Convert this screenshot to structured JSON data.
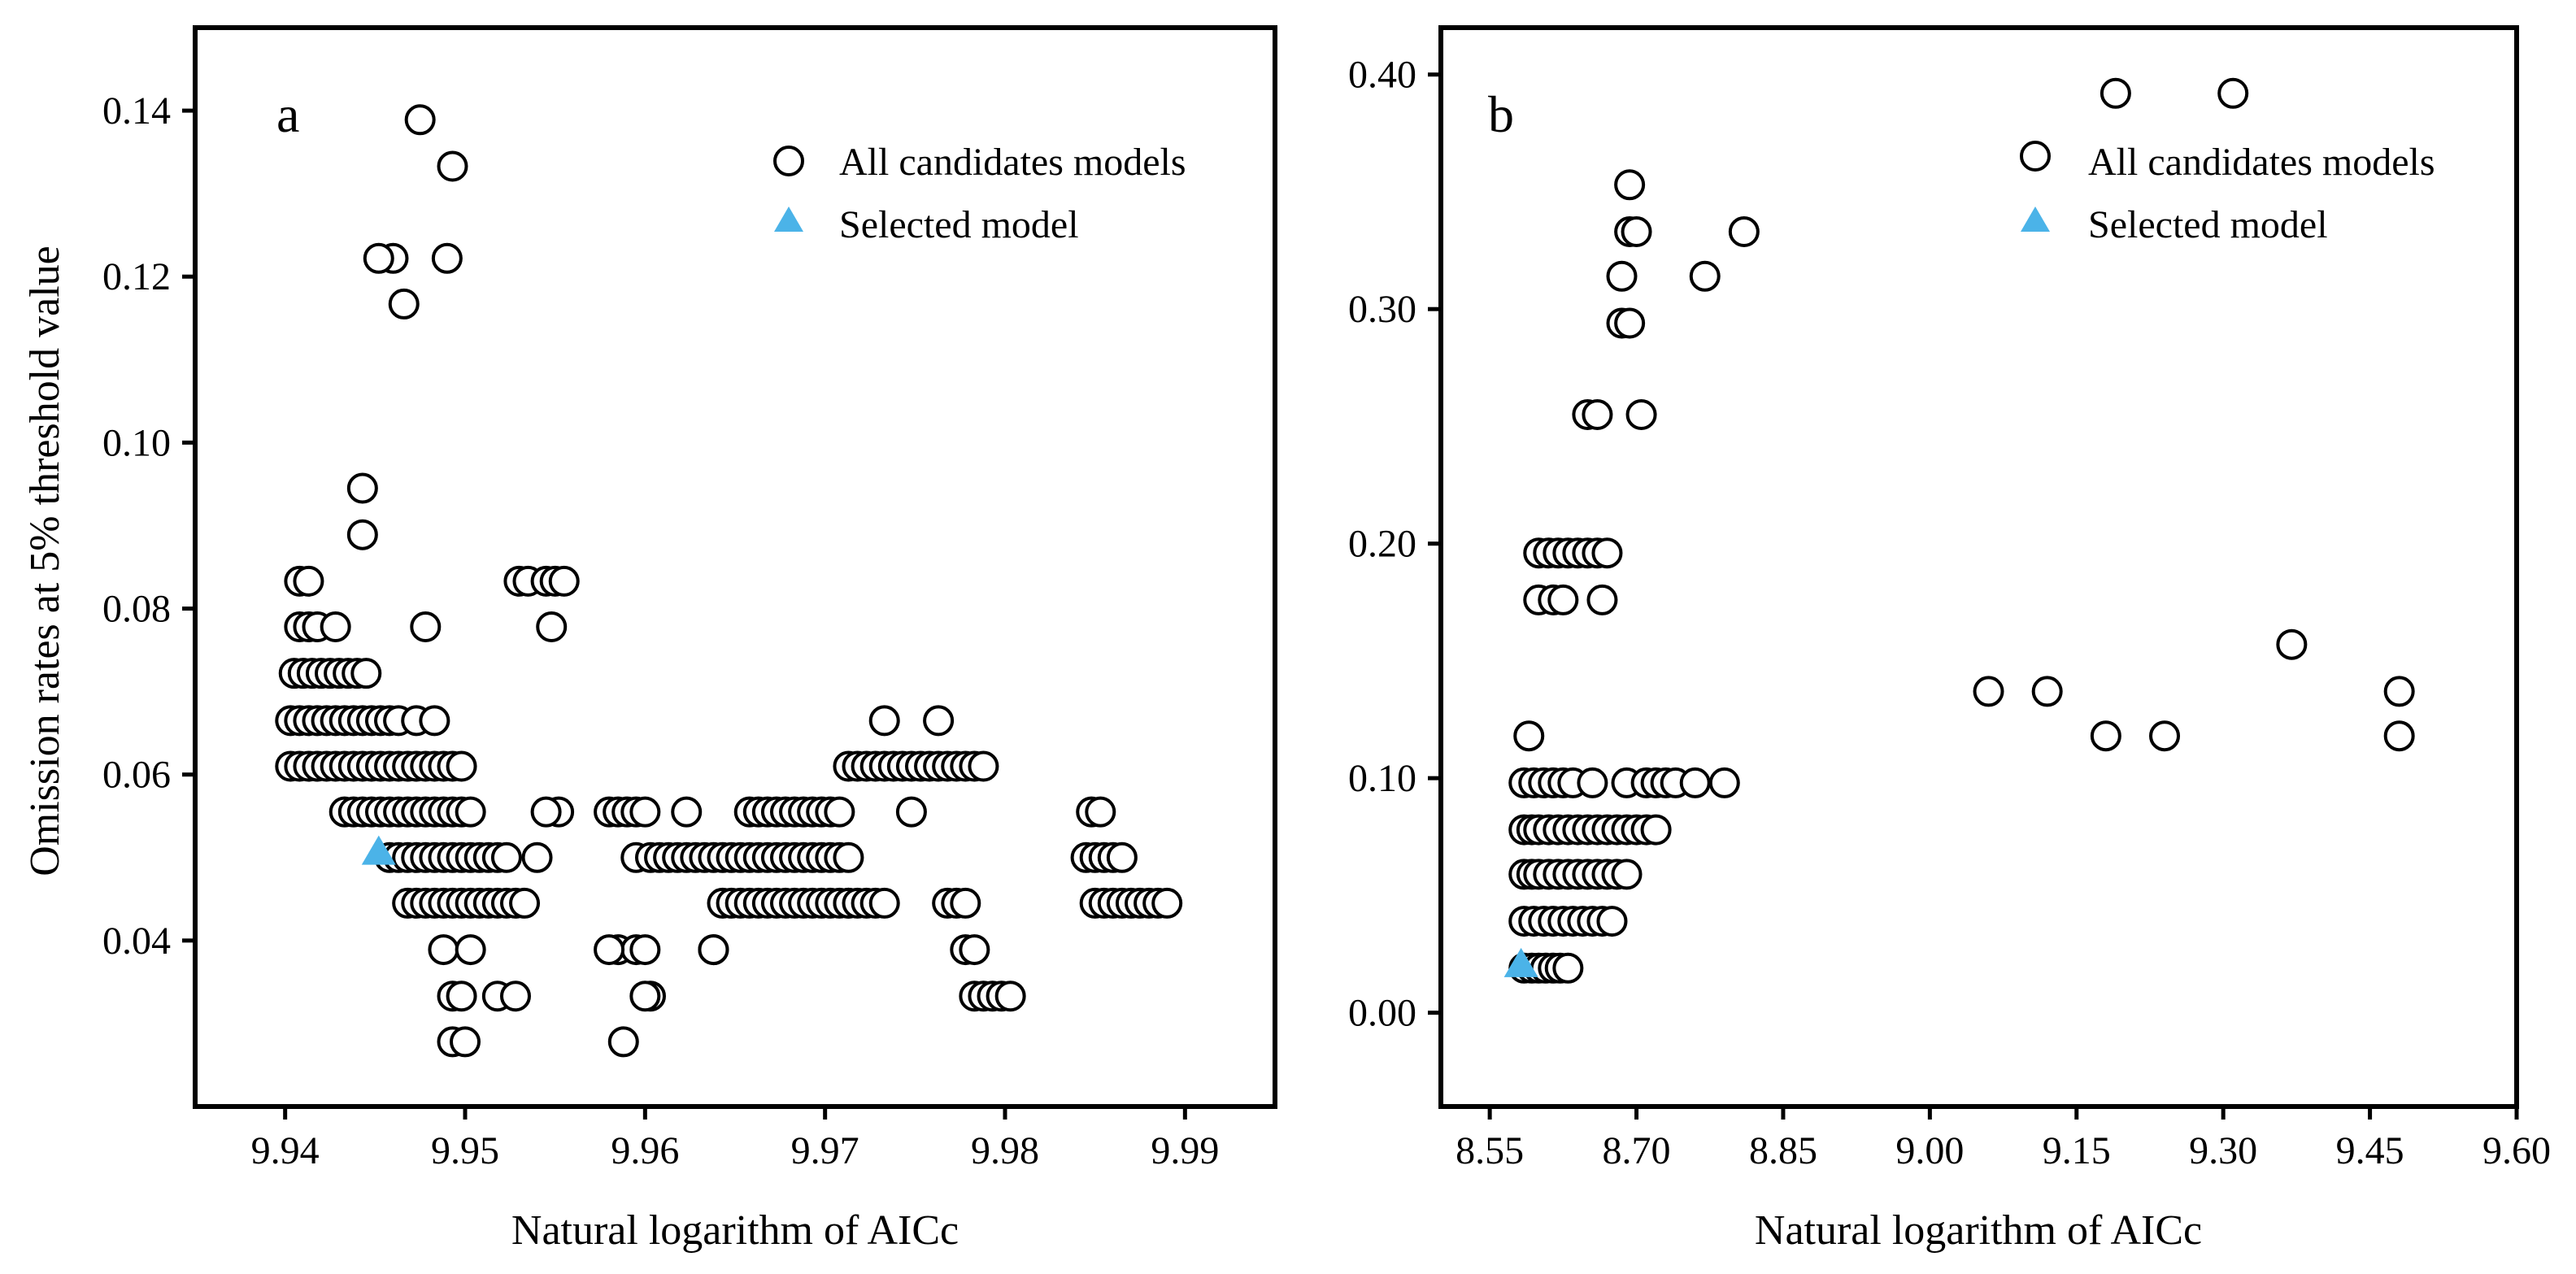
{
  "figure": {
    "ylabel": "Omission rates at 5% threshold value"
  },
  "chart_data": [
    {
      "type": "scatter",
      "panel_label": "a",
      "xlabel": "Natural logarithm of AICc",
      "ylabel": "Omission rates at 5% threshold value",
      "xlim": [
        9.935,
        9.995
      ],
      "ylim": [
        0.02,
        0.15
      ],
      "xticks": [
        "9.94",
        "9.95",
        "9.96",
        "9.97",
        "9.98",
        "9.99"
      ],
      "yticks": [
        "0.04",
        "0.06",
        "0.08",
        "0.10",
        "0.12",
        "0.14"
      ],
      "legend": {
        "position": "top-right",
        "entries": [
          "All candidates models",
          "Selected model"
        ]
      },
      "series": [
        {
          "name": "All candidates models",
          "marker": "open-circle",
          "x": [
            9.9403,
            9.9408,
            9.9413,
            9.9418,
            9.9423,
            9.9428,
            9.9433,
            9.9438,
            9.9443,
            9.9448,
            9.9453,
            9.9458,
            9.9463,
            9.9468,
            9.9473,
            9.9478,
            9.9483,
            9.9488,
            9.9493,
            9.9498,
            9.9403,
            9.9408,
            9.9413,
            9.9418,
            9.9423,
            9.9428,
            9.9433,
            9.9438,
            9.9443,
            9.9448,
            9.9453,
            9.9458,
            9.9463,
            9.9473,
            9.9483,
            9.9405,
            9.941,
            9.9415,
            9.942,
            9.9425,
            9.943,
            9.9435,
            9.944,
            9.9445,
            9.9408,
            9.9413,
            9.9418,
            9.9428,
            9.9408,
            9.9413,
            9.9433,
            9.9438,
            9.9443,
            9.9448,
            9.9453,
            9.9458,
            9.9463,
            9.9468,
            9.9473,
            9.9478,
            9.9483,
            9.9488,
            9.9493,
            9.9498,
            9.9503,
            9.9458,
            9.9463,
            9.9468,
            9.9473,
            9.9478,
            9.9483,
            9.9488,
            9.9493,
            9.9498,
            9.9503,
            9.9508,
            9.9513,
            9.9518,
            9.9523,
            9.9468,
            9.9473,
            9.9478,
            9.9483,
            9.9488,
            9.9493,
            9.9498,
            9.9503,
            9.9508,
            9.9513,
            9.9518,
            9.9523,
            9.9528,
            9.9533,
            9.9488,
            9.9503,
            9.9493,
            9.9498,
            9.9518,
            9.9528,
            9.9493,
            9.95,
            9.9443,
            9.9443,
            9.946,
            9.9475,
            9.949,
            9.9493,
            9.9478,
            9.9452,
            9.9466,
            9.953,
            9.9535,
            9.9545,
            9.955,
            9.9555,
            9.9548,
            9.9552,
            9.9545,
            9.954,
            9.958,
            9.9585,
            9.959,
            9.9595,
            9.96,
            9.9585,
            9.9595,
            9.96,
            9.9603,
            9.958,
            9.9588,
            9.96,
            9.9595,
            9.9603,
            9.9608,
            9.9613,
            9.9618,
            9.9623,
            9.9628,
            9.9633,
            9.9638,
            9.9643,
            9.9648,
            9.9653,
            9.9658,
            9.9663,
            9.9668,
            9.9673,
            9.9678,
            9.9683,
            9.9688,
            9.9693,
            9.9698,
            9.9703,
            9.9708,
            9.9713,
            9.9623,
            9.9638,
            9.9643,
            9.9648,
            9.9653,
            9.9658,
            9.9663,
            9.9668,
            9.9673,
            9.9678,
            9.9683,
            9.9688,
            9.9693,
            9.9698,
            9.9703,
            9.9708,
            9.9713,
            9.9658,
            9.9663,
            9.9668,
            9.9673,
            9.9678,
            9.9683,
            9.9688,
            9.9693,
            9.9698,
            9.9703,
            9.9708,
            9.9713,
            9.9718,
            9.9723,
            9.9728,
            9.9733,
            9.9738,
            9.9743,
            9.9748,
            9.9753,
            9.9758,
            9.9763,
            9.9768,
            9.9773,
            9.9778,
            9.9783,
            9.9788,
            9.9733,
            9.9748,
            9.9763,
            9.9713,
            9.9718,
            9.9723,
            9.9728,
            9.9733,
            9.9638,
            9.9768,
            9.9773,
            9.9778,
            9.9778,
            9.9783,
            9.9783,
            9.9788,
            9.9793,
            9.9798,
            9.9803,
            9.9848,
            9.9853,
            9.9845,
            9.985,
            9.9855,
            9.986,
            9.9865,
            9.985,
            9.9855,
            9.986,
            9.9865,
            9.987,
            9.9875,
            9.988,
            9.9885,
            9.989
          ],
          "y": [
            0.061,
            0.061,
            0.061,
            0.061,
            0.061,
            0.061,
            0.061,
            0.061,
            0.061,
            0.061,
            0.061,
            0.061,
            0.061,
            0.061,
            0.061,
            0.061,
            0.061,
            0.061,
            0.061,
            0.061,
            0.0665,
            0.0665,
            0.0665,
            0.0665,
            0.0665,
            0.0665,
            0.0665,
            0.0665,
            0.0665,
            0.0665,
            0.0665,
            0.0665,
            0.0665,
            0.0665,
            0.0665,
            0.0722,
            0.0722,
            0.0722,
            0.0722,
            0.0722,
            0.0722,
            0.0722,
            0.0722,
            0.0722,
            0.0778,
            0.0778,
            0.0778,
            0.0778,
            0.0833,
            0.0833,
            0.0555,
            0.0555,
            0.0555,
            0.0555,
            0.0555,
            0.0555,
            0.0555,
            0.0555,
            0.0555,
            0.0555,
            0.0555,
            0.0555,
            0.0555,
            0.0555,
            0.0555,
            0.05,
            0.05,
            0.05,
            0.05,
            0.05,
            0.05,
            0.05,
            0.05,
            0.05,
            0.05,
            0.05,
            0.05,
            0.05,
            0.05,
            0.0445,
            0.0445,
            0.0445,
            0.0445,
            0.0445,
            0.0445,
            0.0445,
            0.0445,
            0.0445,
            0.0445,
            0.0445,
            0.0445,
            0.0445,
            0.0445,
            0.0389,
            0.0389,
            0.0333,
            0.0333,
            0.0333,
            0.0333,
            0.0278,
            0.0278,
            0.0945,
            0.0889,
            0.1222,
            0.1389,
            0.1222,
            0.1333,
            0.0778,
            0.1222,
            0.1167,
            0.0833,
            0.0833,
            0.0833,
            0.0833,
            0.0833,
            0.0778,
            0.0555,
            0.0555,
            0.05,
            0.0555,
            0.0555,
            0.0555,
            0.0555,
            0.0555,
            0.0389,
            0.0389,
            0.0389,
            0.0333,
            0.0389,
            0.0278,
            0.0333,
            0.05,
            0.05,
            0.05,
            0.05,
            0.05,
            0.05,
            0.05,
            0.05,
            0.05,
            0.05,
            0.05,
            0.05,
            0.05,
            0.05,
            0.05,
            0.05,
            0.05,
            0.05,
            0.05,
            0.05,
            0.05,
            0.05,
            0.05,
            0.05,
            0.0555,
            0.0389,
            0.0445,
            0.0445,
            0.0445,
            0.0445,
            0.0445,
            0.0445,
            0.0445,
            0.0445,
            0.0445,
            0.0445,
            0.0445,
            0.0445,
            0.0445,
            0.0445,
            0.0445,
            0.0555,
            0.0555,
            0.0555,
            0.0555,
            0.0555,
            0.0555,
            0.0555,
            0.0555,
            0.0555,
            0.0555,
            0.0555,
            0.061,
            0.061,
            0.061,
            0.061,
            0.061,
            0.061,
            0.061,
            0.061,
            0.061,
            0.061,
            0.061,
            0.061,
            0.061,
            0.061,
            0.061,
            0.061,
            0.0665,
            0.0555,
            0.0665,
            0.0445,
            0.0445,
            0.0445,
            0.0445,
            0.0445,
            0.0389,
            0.0445,
            0.0445,
            0.0445,
            0.0389,
            0.0389,
            0.0333,
            0.0333,
            0.0333,
            0.0333,
            0.0333,
            0.0555,
            0.0555,
            0.05,
            0.05,
            0.05,
            0.05,
            0.05,
            0.0445,
            0.0445,
            0.0445,
            0.0445,
            0.0445,
            0.0445,
            0.0445,
            0.0445,
            0.0445
          ]
        },
        {
          "name": "Selected model",
          "marker": "filled-triangle",
          "color": "#4bb3e8",
          "x": [
            9.9452
          ],
          "y": [
            0.0505
          ]
        }
      ]
    },
    {
      "type": "scatter",
      "panel_label": "b",
      "xlabel": "Natural logarithm of AICc",
      "ylabel": "",
      "xlim": [
        8.5,
        9.6
      ],
      "ylim": [
        -0.04,
        0.42
      ],
      "xticks": [
        "8.55",
        "8.70",
        "8.85",
        "9.00",
        "9.15",
        "9.30",
        "9.45",
        "9.60"
      ],
      "yticks": [
        "0.00",
        "0.10",
        "0.20",
        "0.30",
        "0.40"
      ],
      "legend": {
        "position": "top-right",
        "entries": [
          "All candidates models",
          "Selected model"
        ]
      },
      "series": [
        {
          "name": "All candidates models",
          "marker": "open-circle",
          "x": [
            8.585,
            8.593,
            8.6,
            8.607,
            8.615,
            8.622,
            8.63,
            8.585,
            8.595,
            8.605,
            8.615,
            8.625,
            8.635,
            8.645,
            8.655,
            8.665,
            8.675,
            8.585,
            8.593,
            8.6,
            8.61,
            8.62,
            8.63,
            8.64,
            8.65,
            8.66,
            8.67,
            8.68,
            8.69,
            8.585,
            8.593,
            8.6,
            8.61,
            8.62,
            8.63,
            8.64,
            8.65,
            8.66,
            8.67,
            8.68,
            8.69,
            8.7,
            8.71,
            8.72,
            8.585,
            8.595,
            8.605,
            8.615,
            8.625,
            8.635,
            8.655,
            8.69,
            8.71,
            8.72,
            8.73,
            8.74,
            8.76,
            8.79,
            8.59,
            8.6,
            8.615,
            8.625,
            8.665,
            8.6,
            8.61,
            8.62,
            8.63,
            8.64,
            8.65,
            8.66,
            8.67,
            8.65,
            8.66,
            8.705,
            8.685,
            8.693,
            8.685,
            8.77,
            8.693,
            8.7,
            8.81,
            8.693,
            9.06,
            9.12,
            9.18,
            9.24,
            9.37,
            9.48,
            9.48,
            9.19,
            9.31
          ],
          "y": [
            0.019,
            0.019,
            0.019,
            0.019,
            0.019,
            0.019,
            0.019,
            0.039,
            0.039,
            0.039,
            0.039,
            0.039,
            0.039,
            0.039,
            0.039,
            0.039,
            0.039,
            0.059,
            0.059,
            0.059,
            0.059,
            0.059,
            0.059,
            0.059,
            0.059,
            0.059,
            0.059,
            0.059,
            0.059,
            0.078,
            0.078,
            0.078,
            0.078,
            0.078,
            0.078,
            0.078,
            0.078,
            0.078,
            0.078,
            0.078,
            0.078,
            0.078,
            0.078,
            0.078,
            0.098,
            0.098,
            0.098,
            0.098,
            0.098,
            0.098,
            0.098,
            0.098,
            0.098,
            0.098,
            0.098,
            0.098,
            0.098,
            0.098,
            0.118,
            0.176,
            0.176,
            0.176,
            0.176,
            0.196,
            0.196,
            0.196,
            0.196,
            0.196,
            0.196,
            0.196,
            0.196,
            0.255,
            0.255,
            0.255,
            0.294,
            0.294,
            0.314,
            0.314,
            0.333,
            0.333,
            0.333,
            0.353,
            0.137,
            0.137,
            0.118,
            0.118,
            0.157,
            0.137,
            0.118,
            0.392,
            0.392
          ]
        },
        {
          "name": "Selected model",
          "marker": "filled-triangle",
          "color": "#4bb3e8",
          "x": [
            8.582
          ],
          "y": [
            0.02
          ]
        }
      ]
    }
  ]
}
